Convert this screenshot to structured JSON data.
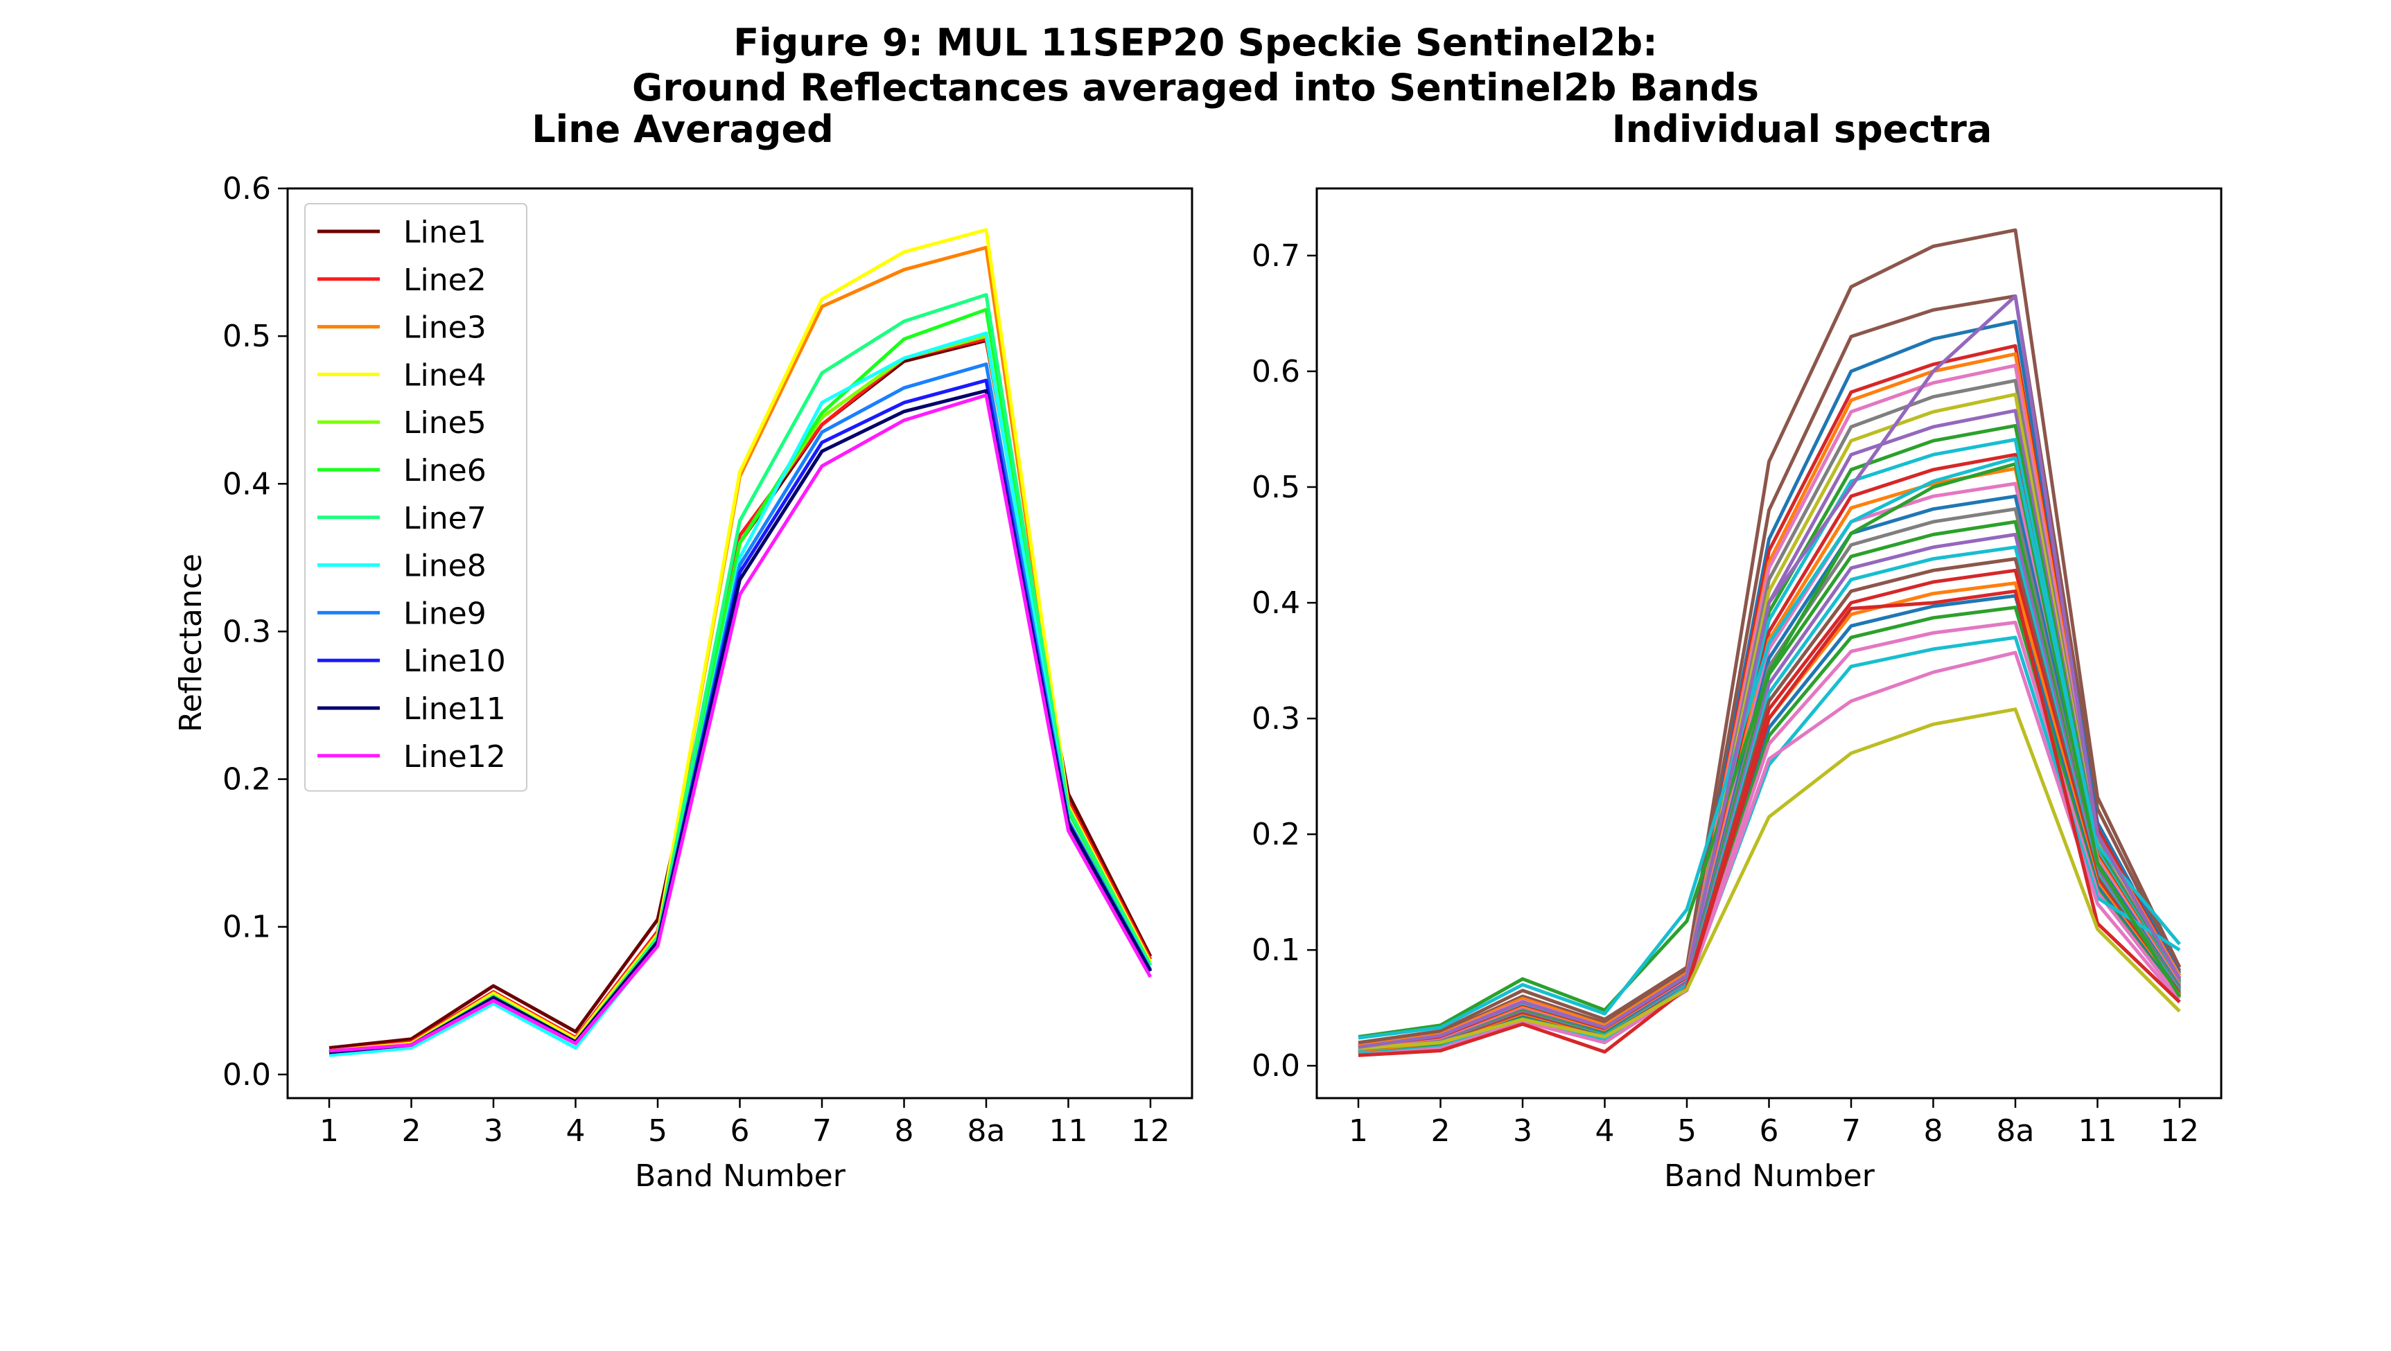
{
  "figure": {
    "title_line1": "Figure 9: MUL 11SEP20 Speckie Sentinel2b:",
    "title_line2": "Ground Reflectances averaged into Sentinel2b Bands"
  },
  "chart_data": [
    {
      "type": "line",
      "title": "Line Averaged",
      "xlabel": "Band Number",
      "ylabel": "Reflectance",
      "categories": [
        "1",
        "2",
        "3",
        "4",
        "5",
        "6",
        "7",
        "8",
        "8a",
        "11",
        "12"
      ],
      "ylim": [
        -0.016,
        0.6
      ],
      "yticks": [
        0.0,
        0.1,
        0.2,
        0.3,
        0.4,
        0.5,
        0.6
      ],
      "legend": "upper-left",
      "series": [
        {
          "name": "Line1",
          "color": "#6b0000",
          "values": [
            0.018,
            0.024,
            0.06,
            0.029,
            0.105,
            0.36,
            0.44,
            0.483,
            0.497,
            0.19,
            0.08
          ]
        },
        {
          "name": "Line2",
          "color": "#ff1a1a",
          "values": [
            0.016,
            0.022,
            0.056,
            0.025,
            0.097,
            0.365,
            0.44,
            0.485,
            0.498,
            0.185,
            0.078
          ]
        },
        {
          "name": "Line3",
          "color": "#ff8000",
          "values": [
            0.016,
            0.021,
            0.055,
            0.024,
            0.095,
            0.405,
            0.52,
            0.545,
            0.56,
            0.18,
            0.076
          ]
        },
        {
          "name": "Line4",
          "color": "#ffff00",
          "values": [
            0.016,
            0.021,
            0.055,
            0.024,
            0.095,
            0.408,
            0.525,
            0.557,
            0.572,
            0.182,
            0.076
          ]
        },
        {
          "name": "Line5",
          "color": "#80ff00",
          "values": [
            0.015,
            0.02,
            0.053,
            0.022,
            0.093,
            0.36,
            0.445,
            0.485,
            0.5,
            0.178,
            0.074
          ]
        },
        {
          "name": "Line6",
          "color": "#1aff1a",
          "values": [
            0.015,
            0.02,
            0.053,
            0.022,
            0.092,
            0.36,
            0.448,
            0.498,
            0.518,
            0.178,
            0.074
          ]
        },
        {
          "name": "Line7",
          "color": "#1aff80",
          "values": [
            0.015,
            0.02,
            0.053,
            0.022,
            0.093,
            0.375,
            0.475,
            0.51,
            0.528,
            0.18,
            0.074
          ]
        },
        {
          "name": "Line8",
          "color": "#1affff",
          "values": [
            0.013,
            0.018,
            0.048,
            0.018,
            0.088,
            0.35,
            0.455,
            0.485,
            0.502,
            0.172,
            0.07
          ]
        },
        {
          "name": "Line9",
          "color": "#1a80ff",
          "values": [
            0.015,
            0.02,
            0.052,
            0.022,
            0.09,
            0.345,
            0.435,
            0.465,
            0.481,
            0.172,
            0.071
          ]
        },
        {
          "name": "Line10",
          "color": "#1a1aff",
          "values": [
            0.015,
            0.02,
            0.052,
            0.022,
            0.09,
            0.34,
            0.428,
            0.455,
            0.47,
            0.17,
            0.07
          ]
        },
        {
          "name": "Line11",
          "color": "#00006b",
          "values": [
            0.015,
            0.02,
            0.052,
            0.022,
            0.09,
            0.335,
            0.422,
            0.449,
            0.463,
            0.17,
            0.07
          ]
        },
        {
          "name": "Line12",
          "color": "#ff1aff",
          "values": [
            0.016,
            0.02,
            0.05,
            0.021,
            0.087,
            0.325,
            0.412,
            0.443,
            0.46,
            0.165,
            0.066
          ]
        }
      ]
    },
    {
      "type": "line",
      "title": "Individual spectra",
      "xlabel": "Band Number",
      "ylabel": "",
      "categories": [
        "1",
        "2",
        "3",
        "4",
        "5",
        "6",
        "7",
        "8",
        "8a",
        "11",
        "12"
      ],
      "ylim": [
        -0.028,
        0.758
      ],
      "yticks": [
        0.0,
        0.1,
        0.2,
        0.3,
        0.4,
        0.5,
        0.6,
        0.7
      ],
      "legend": "none",
      "series": [
        {
          "color": "#8c564b",
          "values": [
            0.02,
            0.03,
            0.065,
            0.04,
            0.085,
            0.522,
            0.673,
            0.708,
            0.722,
            0.232,
            0.085
          ]
        },
        {
          "color": "#8c564b",
          "values": [
            0.018,
            0.028,
            0.06,
            0.037,
            0.082,
            0.48,
            0.63,
            0.653,
            0.665,
            0.222,
            0.082
          ]
        },
        {
          "color": "#1f77b4",
          "values": [
            0.017,
            0.027,
            0.058,
            0.035,
            0.08,
            0.455,
            0.6,
            0.628,
            0.643,
            0.21,
            0.08
          ]
        },
        {
          "color": "#d62728",
          "values": [
            0.017,
            0.026,
            0.057,
            0.034,
            0.079,
            0.445,
            0.582,
            0.606,
            0.622,
            0.205,
            0.078
          ]
        },
        {
          "color": "#ff7f0e",
          "values": [
            0.017,
            0.027,
            0.058,
            0.035,
            0.08,
            0.435,
            0.575,
            0.6,
            0.615,
            0.2,
            0.078
          ]
        },
        {
          "color": "#e377c2",
          "values": [
            0.016,
            0.026,
            0.056,
            0.033,
            0.078,
            0.43,
            0.565,
            0.59,
            0.605,
            0.198,
            0.076
          ]
        },
        {
          "color": "#7f7f7f",
          "values": [
            0.016,
            0.025,
            0.055,
            0.032,
            0.077,
            0.42,
            0.552,
            0.578,
            0.592,
            0.195,
            0.075
          ]
        },
        {
          "color": "#bcbd22",
          "values": [
            0.016,
            0.025,
            0.055,
            0.032,
            0.077,
            0.41,
            0.54,
            0.565,
            0.58,
            0.192,
            0.074
          ]
        },
        {
          "color": "#9467bd",
          "values": [
            0.015,
            0.024,
            0.053,
            0.031,
            0.076,
            0.4,
            0.528,
            0.552,
            0.566,
            0.19,
            0.073
          ]
        },
        {
          "color": "#2ca02c",
          "values": [
            0.015,
            0.024,
            0.053,
            0.031,
            0.076,
            0.392,
            0.515,
            0.54,
            0.553,
            0.188,
            0.072
          ]
        },
        {
          "color": "#17becf",
          "values": [
            0.014,
            0.023,
            0.052,
            0.03,
            0.075,
            0.385,
            0.505,
            0.528,
            0.541,
            0.185,
            0.071
          ]
        },
        {
          "color": "#d62728",
          "values": [
            0.014,
            0.023,
            0.051,
            0.03,
            0.074,
            0.375,
            0.492,
            0.515,
            0.528,
            0.182,
            0.07
          ]
        },
        {
          "color": "#ff7f0e",
          "values": [
            0.014,
            0.022,
            0.05,
            0.029,
            0.073,
            0.368,
            0.482,
            0.503,
            0.516,
            0.18,
            0.07
          ]
        },
        {
          "color": "#e377c2",
          "values": [
            0.013,
            0.022,
            0.049,
            0.028,
            0.073,
            0.36,
            0.47,
            0.492,
            0.503,
            0.178,
            0.069
          ]
        },
        {
          "color": "#1f77b4",
          "values": [
            0.013,
            0.021,
            0.048,
            0.028,
            0.072,
            0.352,
            0.46,
            0.481,
            0.492,
            0.175,
            0.068
          ]
        },
        {
          "color": "#7f7f7f",
          "values": [
            0.013,
            0.021,
            0.048,
            0.027,
            0.071,
            0.345,
            0.45,
            0.47,
            0.481,
            0.172,
            0.067
          ]
        },
        {
          "color": "#2ca02c",
          "values": [
            0.012,
            0.02,
            0.047,
            0.027,
            0.07,
            0.338,
            0.44,
            0.459,
            0.47,
            0.17,
            0.066
          ]
        },
        {
          "color": "#9467bd",
          "values": [
            0.012,
            0.02,
            0.046,
            0.026,
            0.07,
            0.33,
            0.43,
            0.448,
            0.459,
            0.168,
            0.065
          ]
        },
        {
          "color": "#17becf",
          "values": [
            0.012,
            0.019,
            0.045,
            0.026,
            0.069,
            0.322,
            0.42,
            0.438,
            0.448,
            0.165,
            0.064
          ]
        },
        {
          "color": "#8c564b",
          "values": [
            0.011,
            0.019,
            0.045,
            0.025,
            0.068,
            0.315,
            0.41,
            0.428,
            0.438,
            0.163,
            0.063
          ]
        },
        {
          "color": "#d62728",
          "values": [
            0.011,
            0.018,
            0.044,
            0.024,
            0.068,
            0.308,
            0.4,
            0.418,
            0.428,
            0.16,
            0.062
          ]
        },
        {
          "color": "#ff7f0e",
          "values": [
            0.011,
            0.018,
            0.043,
            0.024,
            0.067,
            0.3,
            0.39,
            0.408,
            0.417,
            0.158,
            0.061
          ]
        },
        {
          "color": "#1f77b4",
          "values": [
            0.01,
            0.017,
            0.042,
            0.023,
            0.066,
            0.292,
            0.38,
            0.397,
            0.406,
            0.155,
            0.06
          ]
        },
        {
          "color": "#2ca02c",
          "values": [
            0.01,
            0.017,
            0.041,
            0.023,
            0.066,
            0.285,
            0.37,
            0.387,
            0.396,
            0.152,
            0.059
          ]
        },
        {
          "color": "#e377c2",
          "values": [
            0.01,
            0.016,
            0.04,
            0.022,
            0.065,
            0.278,
            0.358,
            0.374,
            0.383,
            0.15,
            0.058
          ]
        },
        {
          "color": "#17becf",
          "values": [
            0.01,
            0.016,
            0.04,
            0.022,
            0.068,
            0.26,
            0.345,
            0.36,
            0.37,
            0.145,
            0.1
          ]
        },
        {
          "color": "#e377c2",
          "values": [
            0.009,
            0.015,
            0.038,
            0.02,
            0.066,
            0.265,
            0.315,
            0.34,
            0.357,
            0.14,
            0.055
          ]
        },
        {
          "color": "#d62728",
          "values": [
            0.009,
            0.013,
            0.036,
            0.012,
            0.067,
            0.3,
            0.395,
            0.4,
            0.41,
            0.123,
            0.055
          ]
        },
        {
          "color": "#bcbd22",
          "values": [
            0.015,
            0.02,
            0.04,
            0.025,
            0.066,
            0.215,
            0.27,
            0.295,
            0.308,
            0.118,
            0.047
          ]
        },
        {
          "color": "#2ca02c",
          "values": [
            0.025,
            0.035,
            0.075,
            0.048,
            0.125,
            0.34,
            0.46,
            0.5,
            0.52,
            0.175,
            0.06
          ]
        },
        {
          "color": "#17becf",
          "values": [
            0.024,
            0.033,
            0.07,
            0.045,
            0.135,
            0.365,
            0.47,
            0.505,
            0.525,
            0.19,
            0.105
          ]
        },
        {
          "color": "#9467bd",
          "values": [
            0.016,
            0.026,
            0.055,
            0.033,
            0.078,
            0.4,
            0.5,
            0.6,
            0.665,
            0.2,
            0.075
          ]
        }
      ]
    }
  ]
}
